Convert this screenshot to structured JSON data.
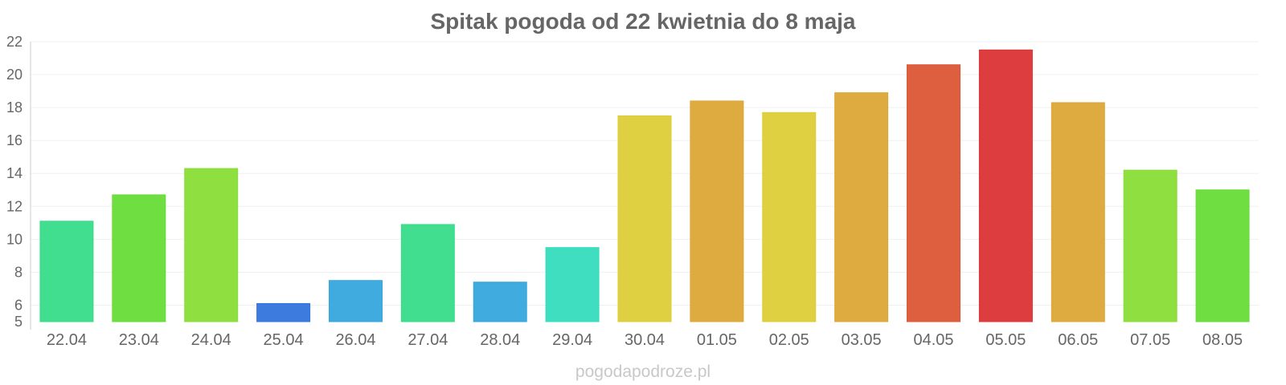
{
  "chart_data": {
    "type": "bar",
    "title": "Spitak pogoda od 22 kwietnia do 8 maja",
    "xlabel": "",
    "ylabel": "",
    "categories": [
      "22.04",
      "23.04",
      "24.04",
      "25.04",
      "26.04",
      "27.04",
      "28.04",
      "29.04",
      "30.04",
      "01.05",
      "02.05",
      "03.05",
      "04.05",
      "05.05",
      "06.05",
      "07.05",
      "08.05"
    ],
    "values": [
      11.1,
      12.7,
      14.3,
      6.1,
      7.5,
      10.9,
      7.4,
      9.5,
      17.5,
      18.4,
      17.7,
      18.9,
      20.6,
      21.5,
      18.3,
      14.2,
      13.0
    ],
    "colors": [
      "#36dc88",
      "#66dc36",
      "#89dd36",
      "#3375dc",
      "#36a6dc",
      "#36dc88",
      "#36a6dc",
      "#36dcbd",
      "#dccd36",
      "#dca736",
      "#dccd36",
      "#dca736",
      "#dc5536",
      "#dc3336",
      "#dca736",
      "#89dd36",
      "#66dc36"
    ],
    "ylim": [
      5,
      22
    ],
    "yticks": [
      5,
      6,
      8,
      10,
      12,
      14,
      16,
      18,
      20,
      22
    ],
    "grid": true,
    "legend": "none"
  },
  "watermark": "pogodapodroze.pl"
}
